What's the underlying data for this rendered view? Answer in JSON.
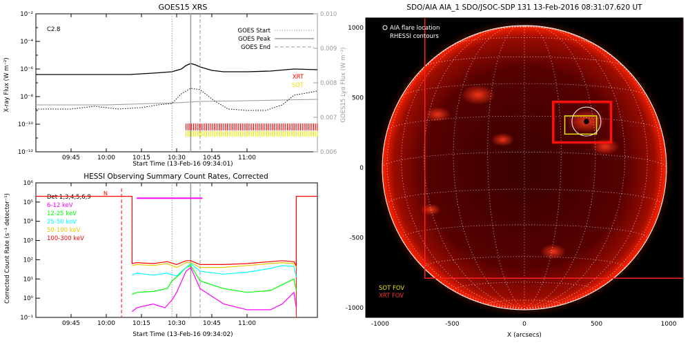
{
  "chart_data": [
    {
      "type": "line",
      "title": "GOES15 XRS",
      "xlabel": "Start Time (13-Feb-16 09:34:01)",
      "ylabel_left": "X-ray Flux (W m⁻²)",
      "ylabel_right": "GOES15 Lyα Flux (W m⁻²)",
      "flare_class": "C2.8",
      "x_ticks": [
        "09:45",
        "10:00",
        "10:15",
        "10:30",
        "10:45",
        "11:00"
      ],
      "y_ticks_left": [
        "10⁻¹²",
        "10⁻¹⁰",
        "10⁻⁸",
        "10⁻⁶",
        "10⁻⁴",
        "10⁻²"
      ],
      "y_ticks_right": [
        "0.006",
        "0.007",
        "0.008",
        "0.009",
        "0.010"
      ],
      "ylim_left_exp": [
        -12,
        -2
      ],
      "ylim_right": [
        0.006,
        0.01
      ],
      "xlim_min": [
        570,
        690
      ],
      "legend": [
        {
          "label": "GOES Start",
          "style": "dotted"
        },
        {
          "label": "GOES Peak",
          "style": "solid"
        },
        {
          "label": "GOES End",
          "style": "dashed"
        }
      ],
      "markers_min": {
        "start": 628,
        "peak": 636,
        "end": 640
      },
      "coverage_labels": [
        {
          "label": "XRT",
          "color": "#ff0000"
        },
        {
          "label": "SOT",
          "color": "#e6e600"
        }
      ],
      "series": [
        {
          "name": "",
          "color": "#000000",
          "x": [
            570,
            580,
            590,
            600,
            610,
            620,
            628,
            632,
            634,
            636,
            638,
            640,
            645,
            650,
            660,
            670,
            680,
            690
          ],
          "log_y": [
            -6.4,
            -6.4,
            -6.4,
            -6.4,
            -6.4,
            -6.3,
            -6.2,
            -6.0,
            -5.75,
            -5.6,
            -5.7,
            -5.85,
            -6.1,
            -6.2,
            -6.2,
            -6.15,
            -6.0,
            -6.05
          ]
        },
        {
          "name": "",
          "color": "#999999",
          "x": [
            570,
            600,
            630,
            640,
            660,
            690
          ],
          "log_y": [
            -8.6,
            -8.6,
            -8.45,
            -8.35,
            -8.3,
            -8.2
          ]
        }
      ]
    },
    {
      "type": "line",
      "title": "HESSI Observing Summary Count Rates, Corrected",
      "xlabel": "Start Time (13-Feb-16 09:34:02)",
      "ylabel": "Corrected Count Rate (s⁻¹ detector⁻¹)",
      "detectors": "Det 1,3,4,5,6,9",
      "night_flag": "N",
      "x_ticks": [
        "09:45",
        "10:00",
        "10:15",
        "10:30",
        "10:45",
        "11:00"
      ],
      "y_ticks": [
        "10⁻¹",
        "10⁰",
        "10¹",
        "10²",
        "10³",
        "10⁴",
        "10⁵",
        "10⁶"
      ],
      "ylim_exp": [
        -1,
        6
      ],
      "xlim_min": [
        570,
        690
      ],
      "series": [
        {
          "name": "6-12 keV",
          "color": "#ff00ff",
          "x": [
            611,
            613,
            620,
            625,
            628,
            630,
            634,
            636,
            640,
            650,
            660,
            670,
            675,
            680,
            681
          ],
          "log_y": [
            -0.7,
            -0.5,
            -0.3,
            -0.5,
            -0.1,
            0.3,
            1.4,
            1.6,
            0.5,
            -0.3,
            -0.6,
            -0.6,
            -0.3,
            0.3,
            -0.5
          ]
        },
        {
          "name": "12-25 keV",
          "color": "#00ff00",
          "x": [
            611,
            613,
            620,
            626,
            628,
            631,
            634,
            636,
            640,
            650,
            660,
            670,
            675,
            680,
            681
          ],
          "log_y": [
            0.2,
            0.3,
            0.35,
            0.5,
            0.9,
            1.2,
            1.6,
            1.7,
            0.9,
            0.5,
            0.3,
            0.4,
            0.7,
            1.0,
            0.4
          ]
        },
        {
          "name": "25-50 keV",
          "color": "#00ffff",
          "x": [
            611,
            613,
            620,
            626,
            630,
            634,
            636,
            640,
            650,
            660,
            670,
            675,
            680,
            681
          ],
          "log_y": [
            1.2,
            1.3,
            1.2,
            1.3,
            1.15,
            1.6,
            1.8,
            1.4,
            1.25,
            1.35,
            1.55,
            1.7,
            1.65,
            1.1
          ]
        },
        {
          "name": "50-100 keV",
          "color": "#e6c800",
          "x": [
            611,
            613,
            620,
            626,
            630,
            634,
            636,
            640,
            650,
            660,
            670,
            675,
            680,
            681
          ],
          "log_y": [
            1.7,
            1.75,
            1.7,
            1.8,
            1.6,
            1.85,
            1.85,
            1.6,
            1.6,
            1.7,
            1.8,
            1.85,
            1.8,
            1.6
          ]
        },
        {
          "name": "100-300 keV",
          "color": "#ff0000",
          "x": [
            570,
            611,
            611,
            613,
            620,
            626,
            630,
            634,
            636,
            640,
            650,
            660,
            670,
            675,
            680,
            681,
            681,
            690
          ],
          "log_y": [
            5.3,
            5.3,
            1.8,
            1.85,
            1.8,
            1.9,
            1.75,
            1.95,
            1.95,
            1.75,
            1.75,
            1.8,
            1.9,
            1.95,
            1.9,
            1.7,
            5.3,
            5.3
          ]
        }
      ]
    },
    {
      "type": "heatmap",
      "title": "SDO/AIA AIA_1 SDO/JSOC-SDP 131 13-Feb-2016 08:31:07.620 UT",
      "xlabel": "X (arcsecs)",
      "ylabel": "",
      "x_ticks": [
        "-1000",
        "-500",
        "0",
        "500",
        "1000"
      ],
      "y_ticks": [
        "-1000",
        "-500",
        "0",
        "500",
        "1000"
      ],
      "xlim": [
        -1100,
        1100
      ],
      "ylim": [
        -1070,
        1070
      ],
      "solar_radius": 985,
      "legend": [
        "AIA flare location",
        "RHESSI contours"
      ],
      "fov_labels": [
        {
          "label": "SOT FOV",
          "color": "#e6e600"
        },
        {
          "label": "XRT FOV",
          "color": "#ff3333"
        }
      ],
      "flare_location": [
        430,
        330
      ],
      "xrt_fov": [
        -690,
        -790,
        1100,
        1080
      ],
      "hessi_box": [
        200,
        180,
        600,
        470
      ],
      "sot_fov": [
        280,
        240,
        500,
        370
      ]
    }
  ]
}
